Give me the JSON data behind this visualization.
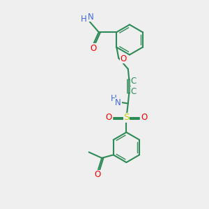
{
  "bg_color": "#efefef",
  "C": "#2e8b57",
  "N": "#4169e1",
  "O": "#ff0000",
  "S": "#cccc00",
  "bc": "#2e8b57",
  "fs": 8.5
}
